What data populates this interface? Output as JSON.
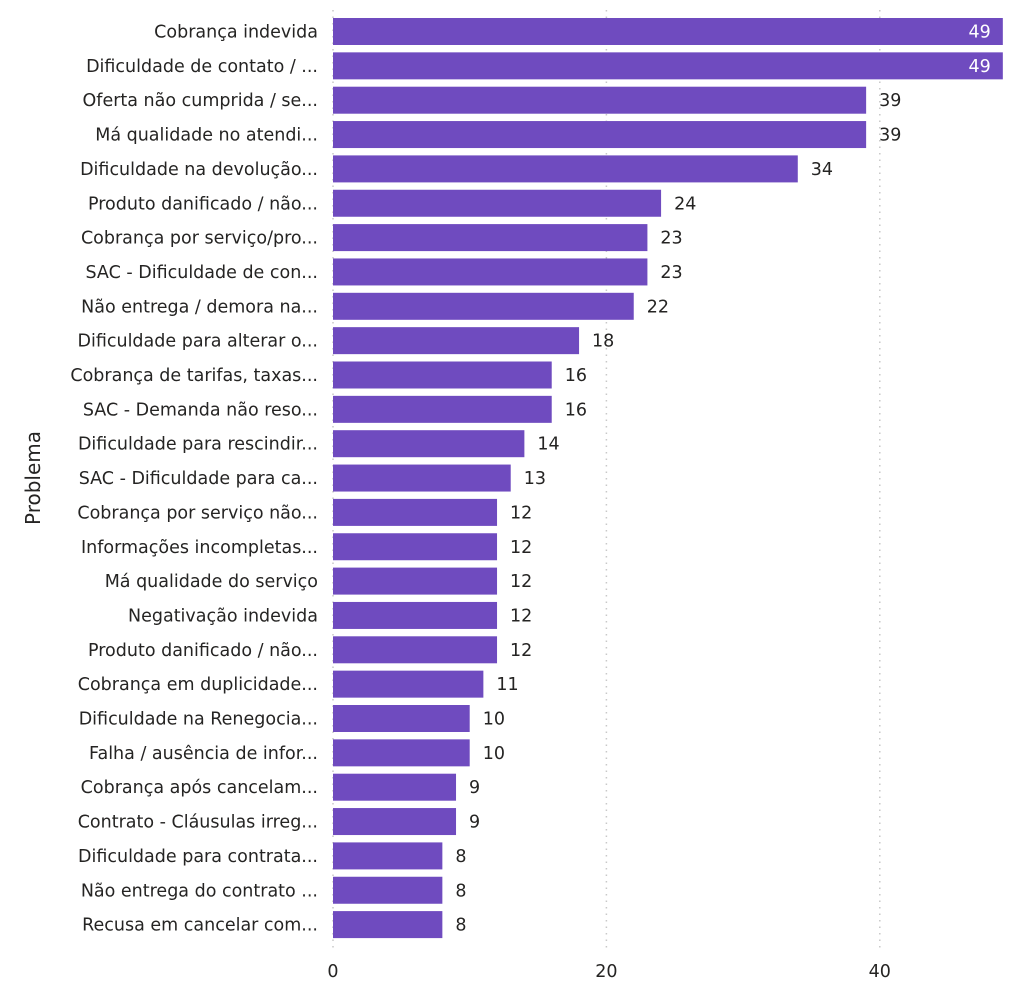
{
  "chart_data": {
    "type": "bar",
    "orientation": "horizontal",
    "title": "",
    "xlabel": "",
    "ylabel": "Problema",
    "xlim": [
      0,
      49
    ],
    "xticks": [
      0,
      20,
      40
    ],
    "xtick_labels": [
      "0",
      "20",
      "40"
    ],
    "grid": true,
    "bar_color": "#6f4bbf",
    "categories": [
      "Cobrança indevida",
      "Dificuldade de contato / ...",
      "Oferta não cumprida / se...",
      "Má qualidade no atendi...",
      "Dificuldade na devolução...",
      "Produto danificado / não...",
      "Cobrança por serviço/pro...",
      "SAC - Dificuldade de con...",
      "Não entrega / demora na...",
      "Dificuldade para alterar o...",
      "Cobrança de tarifas, taxas...",
      "SAC - Demanda não reso...",
      "Dificuldade para rescindir...",
      "SAC - Dificuldade para ca...",
      "Cobrança por serviço não...",
      "Informações incompletas...",
      "Má qualidade do serviço",
      "Negativação indevida",
      "Produto danificado / não...",
      "Cobrança em duplicidade...",
      "Dificuldade na Renegocia...",
      "Falha / ausência de infor...",
      "Cobrança após cancelam...",
      "Contrato - Cláusulas irreg...",
      "Dificuldade para contrata...",
      "Não entrega do contrato ...",
      "Recusa em cancelar com..."
    ],
    "values": [
      49,
      49,
      39,
      39,
      34,
      24,
      23,
      23,
      22,
      18,
      16,
      16,
      14,
      13,
      12,
      12,
      12,
      12,
      12,
      11,
      10,
      10,
      9,
      9,
      8,
      8,
      8
    ]
  }
}
